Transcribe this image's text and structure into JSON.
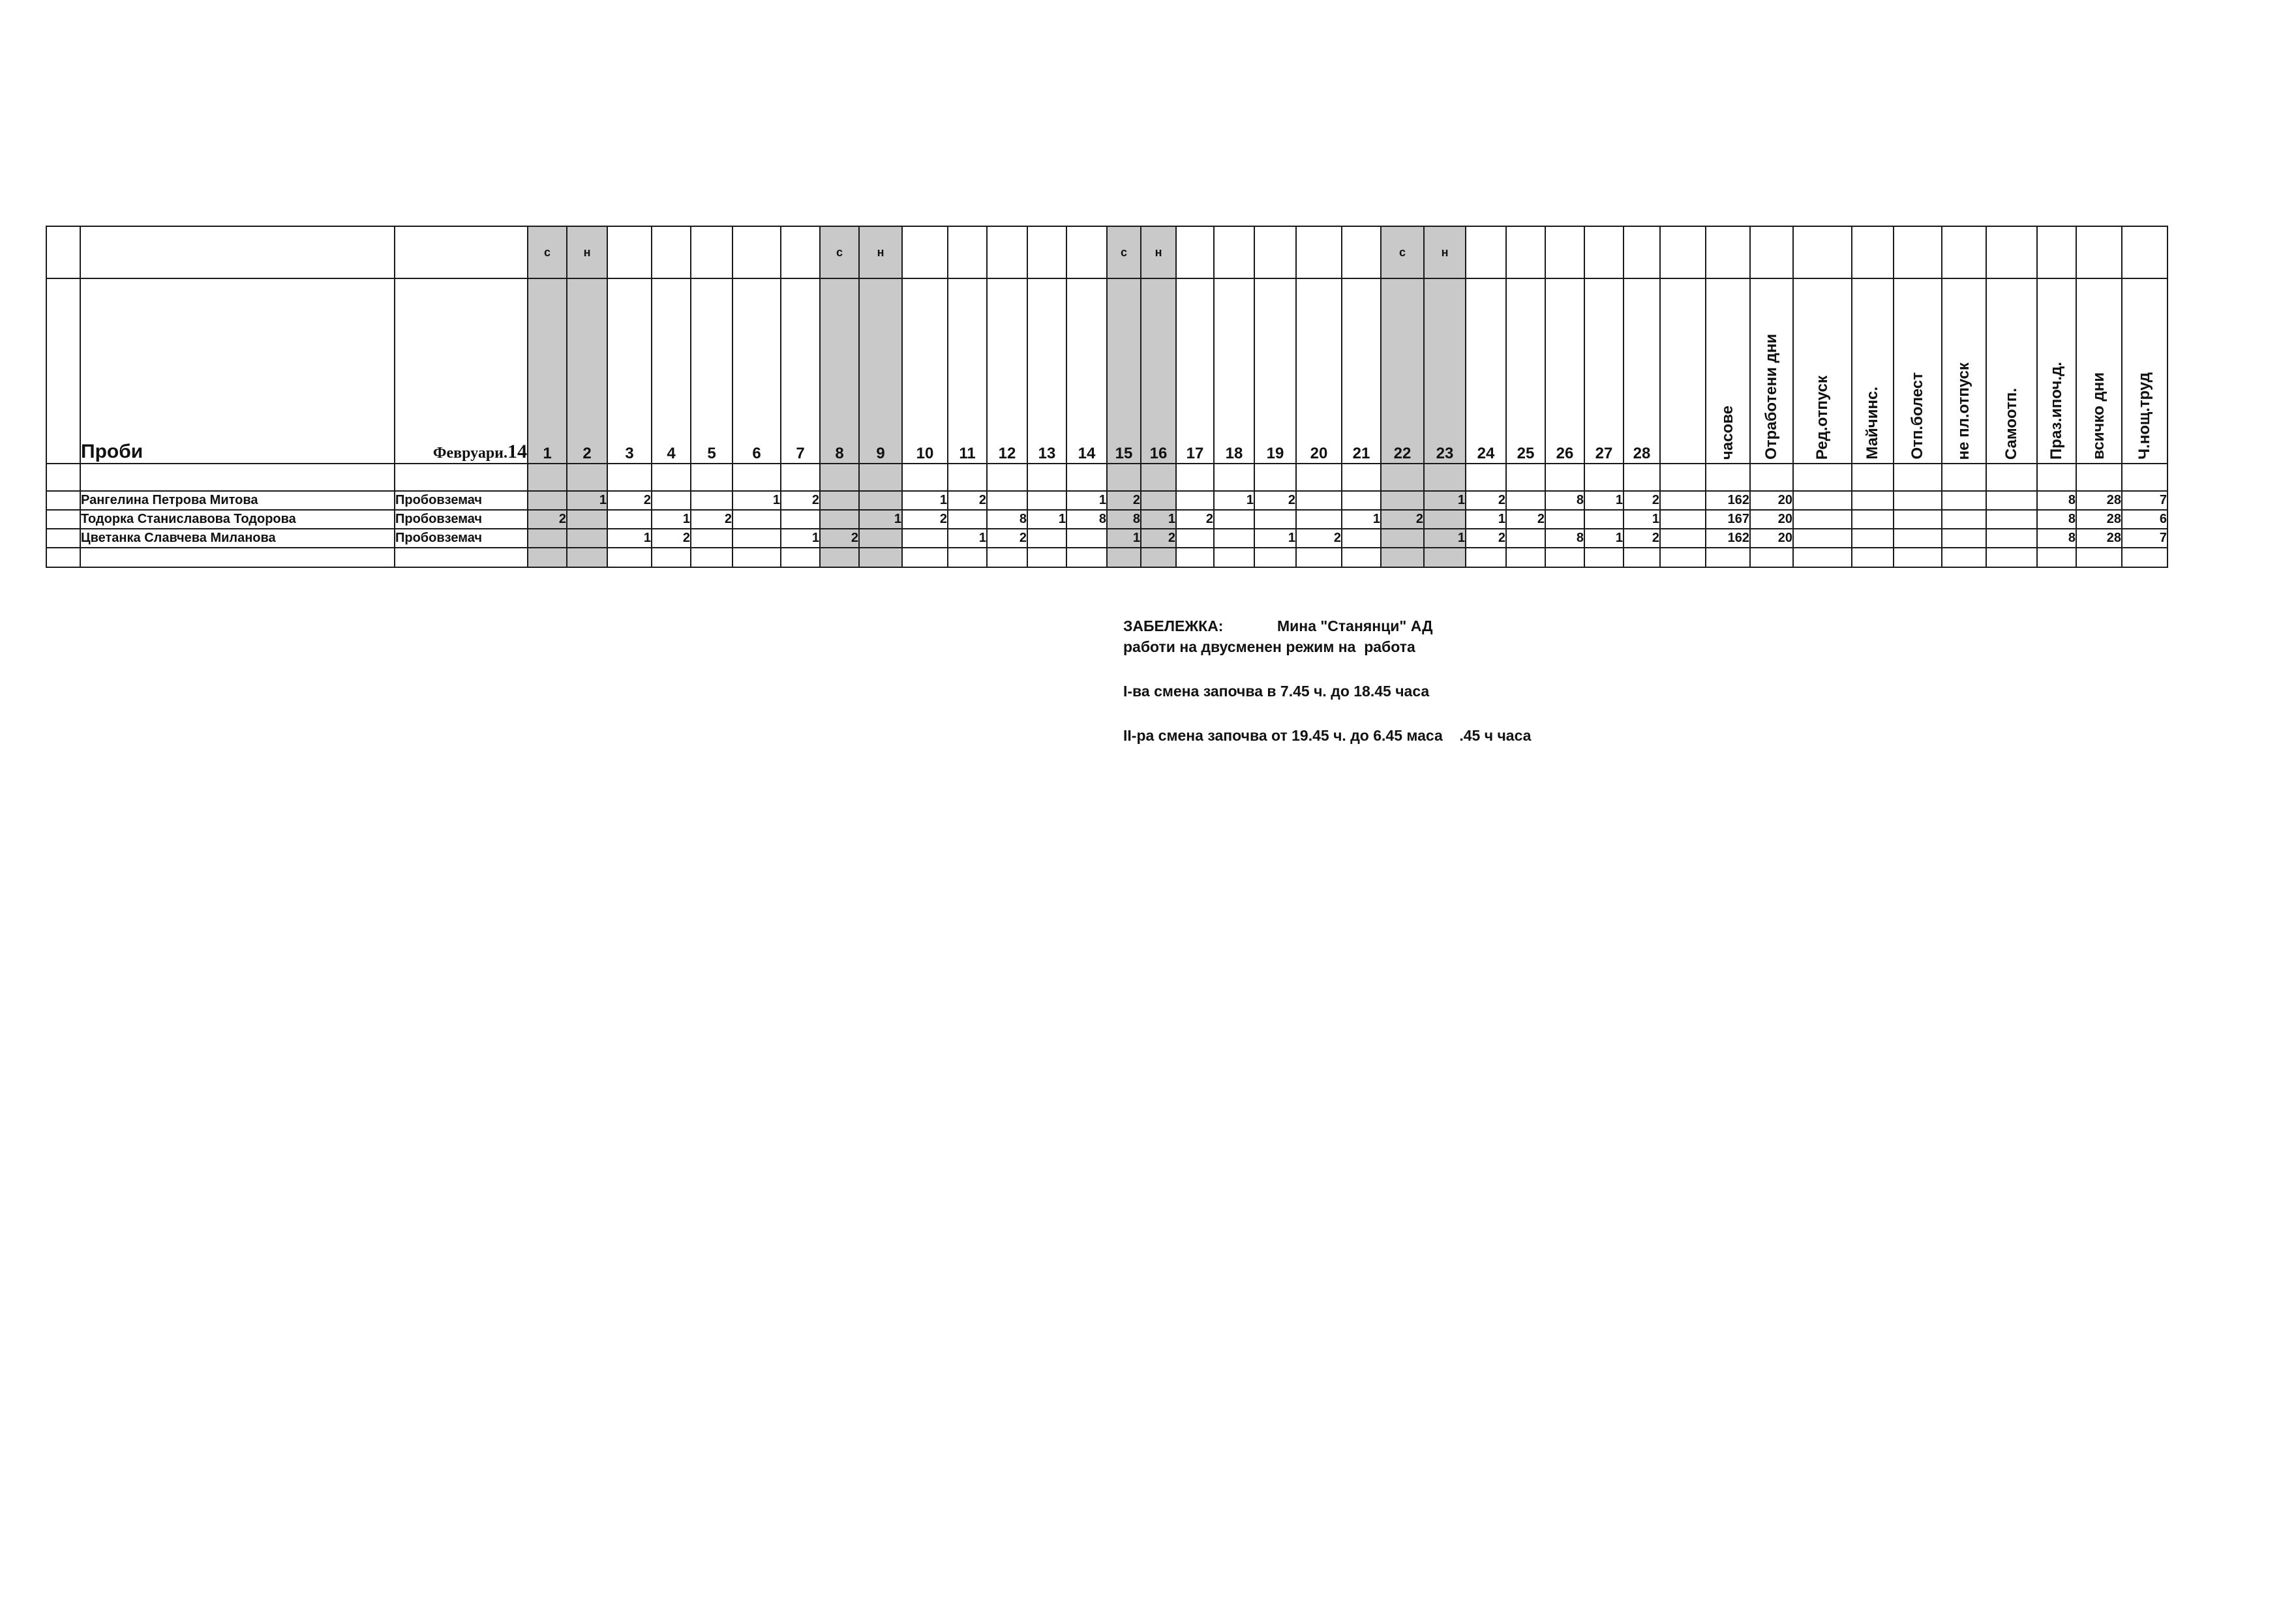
{
  "sheet": {
    "section_title": "Проби",
    "month_label": "Февруари.",
    "month_year": "14",
    "days": [
      "1",
      "2",
      "3",
      "4",
      "5",
      "6",
      "7",
      "8",
      "9",
      "10",
      "11",
      "12",
      "13",
      "14",
      "15",
      "16",
      "17",
      "18",
      "19",
      "20",
      "21",
      "22",
      "23",
      "24",
      "25",
      "26",
      "27",
      "28"
    ],
    "weekend_marks": [
      "с",
      "н",
      "",
      "",
      "",
      "",
      "",
      "с",
      "н",
      "",
      "",
      "",
      "",
      "",
      "с",
      "н",
      "",
      "",
      "",
      "",
      "",
      "с",
      "н",
      "",
      "",
      "",
      "",
      ""
    ],
    "summary_headers": [
      "часове",
      "Отработени дни",
      "Ред.отпуск",
      "Майчинс.",
      "Отп.болест",
      "не пл.отпуск",
      "Самоотп.",
      "Праз.ипоч.д.",
      "всичко  дни",
      "Ч.нощ.труд"
    ]
  },
  "employees": [
    {
      "name": "Рангелина Петрова Митова",
      "position": "Пробовземач",
      "days": [
        "",
        "1",
        "2",
        "",
        "",
        "1",
        "2",
        "",
        "",
        "1",
        "2",
        "",
        "",
        "1",
        "2",
        "",
        "",
        "1",
        "2",
        "",
        "",
        "",
        "1",
        "2",
        "",
        "8",
        "1",
        "2"
      ],
      "summary": [
        "162",
        "20",
        "",
        "",
        "",
        "",
        "",
        "8",
        "28",
        "7"
      ]
    },
    {
      "name": "Тодорка Станиславова Тодорова",
      "position": "Пробовземач",
      "days": [
        "2",
        "",
        "",
        "1",
        "2",
        "",
        "",
        "",
        "1",
        "2",
        "",
        "8",
        "1",
        "8",
        "8",
        "1",
        "2",
        "",
        "",
        "",
        "1",
        "2",
        "",
        "1",
        "2",
        "",
        "",
        "1"
      ],
      "summary": [
        "167",
        "20",
        "",
        "",
        "",
        "",
        "",
        "8",
        "28",
        "6"
      ]
    },
    {
      "name": "Цветанка Славчева Миланова",
      "position": "Пробовземач",
      "days": [
        "",
        "",
        "1",
        "2",
        "",
        "",
        "1",
        "2",
        "",
        "",
        "1",
        "2",
        "",
        "",
        "1",
        "2",
        "",
        "",
        "1",
        "2",
        "",
        "",
        "1",
        "2",
        "",
        "8",
        "1",
        "2"
      ],
      "summary": [
        "162",
        "20",
        "",
        "",
        "",
        "",
        "",
        "8",
        "28",
        "7"
      ]
    }
  ],
  "note": {
    "title": "ЗАБЕЛЕЖКА:",
    "company": "Мина \"Станянци\" АД",
    "line1": "работи на двусменен режим на  работа",
    "line2": "I-ва смена започва в 7.45 ч. до 18.45 часа",
    "line3": "II-ра смена започва от 19.45 ч. до 6.45 маса    .45 ч часа"
  },
  "colors": {
    "weekend_fill": "#c9c9c9",
    "grid_line": "#1a1a1a"
  }
}
